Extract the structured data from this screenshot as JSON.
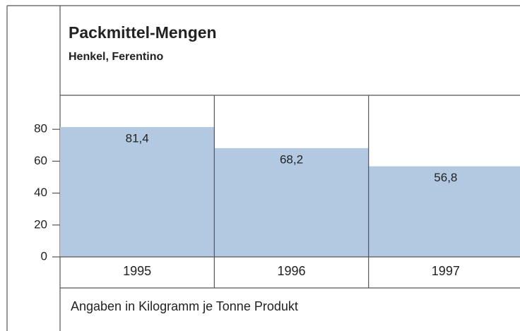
{
  "chart_data": {
    "type": "bar",
    "title": "Packmittel-Mengen",
    "subtitle": "Henkel, Ferentino",
    "categories": [
      "1995",
      "1996",
      "1997"
    ],
    "values": [
      81.4,
      68.2,
      56.8
    ],
    "value_labels": [
      "81,4",
      "68,2",
      "56,8"
    ],
    "color": "#b3c9e1",
    "ylim": [
      0,
      100
    ],
    "yticks": [
      0,
      20,
      40,
      60,
      80
    ],
    "note": "Angaben in Kilogramm je Tonne Produkt"
  }
}
